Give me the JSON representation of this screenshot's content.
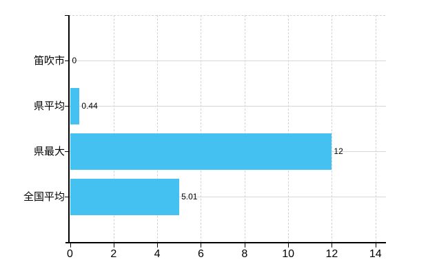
{
  "chart_data": {
    "type": "bar",
    "orientation": "horizontal",
    "title": "",
    "legend": "none",
    "categories": [
      "笛吹市",
      "県平均",
      "県最大",
      "全国平均"
    ],
    "values": [
      0,
      0.44,
      12,
      5.01
    ],
    "value_labels": [
      "0",
      "0.44",
      "12",
      "5.01"
    ],
    "x_axis": {
      "tick_labels": [
        "0",
        "2",
        "4",
        "6",
        "8",
        "10",
        "12",
        "14"
      ],
      "tick_values": [
        0,
        2,
        4,
        6,
        8,
        10,
        12,
        14
      ],
      "min": 0,
      "max": 14.5
    },
    "grid": {
      "vertical_style": "dashed",
      "horizontal_style": "solid",
      "top_border_style": "dashed"
    },
    "colors": {
      "bar": "#44c1f1",
      "axis": "#000000",
      "horizontal_grid": "#d4dbd4",
      "vertical_grid": "#ced2dc",
      "label_text": "#000000",
      "background": "#ffffff"
    }
  }
}
